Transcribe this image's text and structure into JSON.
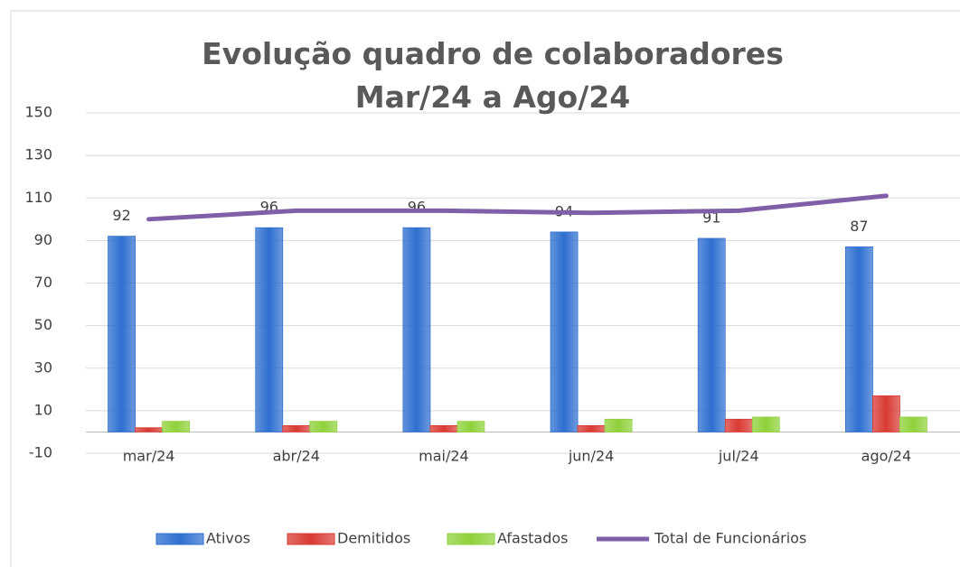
{
  "chart_data": {
    "type": "bar",
    "title": "Evolução quadro de colaboradores Mar/24 a Ago/24",
    "categories": [
      "mar/24",
      "abr/24",
      "mai/24",
      "jun/24",
      "jul/24",
      "ago/24"
    ],
    "series": [
      {
        "name": "Ativos",
        "color": "#2e6fd0",
        "values": [
          92,
          96,
          96,
          94,
          91,
          87
        ]
      },
      {
        "name": "Demitidos",
        "color": "#d93a33",
        "values": [
          2,
          3,
          3,
          3,
          6,
          17
        ]
      },
      {
        "name": "Afastados",
        "color": "#8fd13a",
        "values": [
          5,
          5,
          5,
          6,
          7,
          7
        ]
      },
      {
        "name": "Total de Funcionários",
        "type": "line",
        "color": "#7f5fa8",
        "values": [
          100,
          104,
          104,
          103,
          104,
          111
        ]
      }
    ],
    "ylim": [
      -10,
      150
    ],
    "yticks": [
      -10,
      10,
      30,
      50,
      70,
      90,
      110,
      130,
      150
    ],
    "grid": true,
    "legend": "bottom"
  }
}
